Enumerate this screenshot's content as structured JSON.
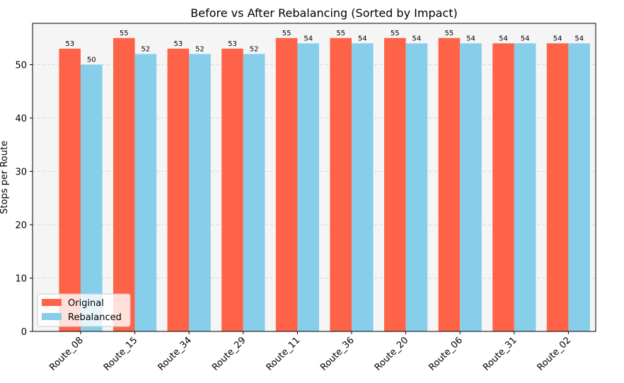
{
  "chart_data": {
    "type": "bar",
    "title": "Before vs After Rebalancing (Sorted by Impact)",
    "xlabel": "",
    "ylabel": "Stops per Route",
    "ylim": [
      0,
      57.75
    ],
    "yticks": [
      0,
      10,
      20,
      30,
      40,
      50
    ],
    "grid": "y-dashed",
    "legend_position": "lower-left",
    "categories": [
      "Route_08",
      "Route_15",
      "Route_34",
      "Route_29",
      "Route_11",
      "Route_36",
      "Route_20",
      "Route_06",
      "Route_31",
      "Route_02"
    ],
    "series": [
      {
        "name": "Original",
        "color": "#ff6347",
        "values": [
          53,
          55,
          53,
          53,
          55,
          55,
          55,
          55,
          54,
          54
        ]
      },
      {
        "name": "Rebalanced",
        "color": "#87ceeb",
        "values": [
          50,
          52,
          52,
          52,
          54,
          54,
          54,
          54,
          54,
          54
        ]
      }
    ]
  }
}
